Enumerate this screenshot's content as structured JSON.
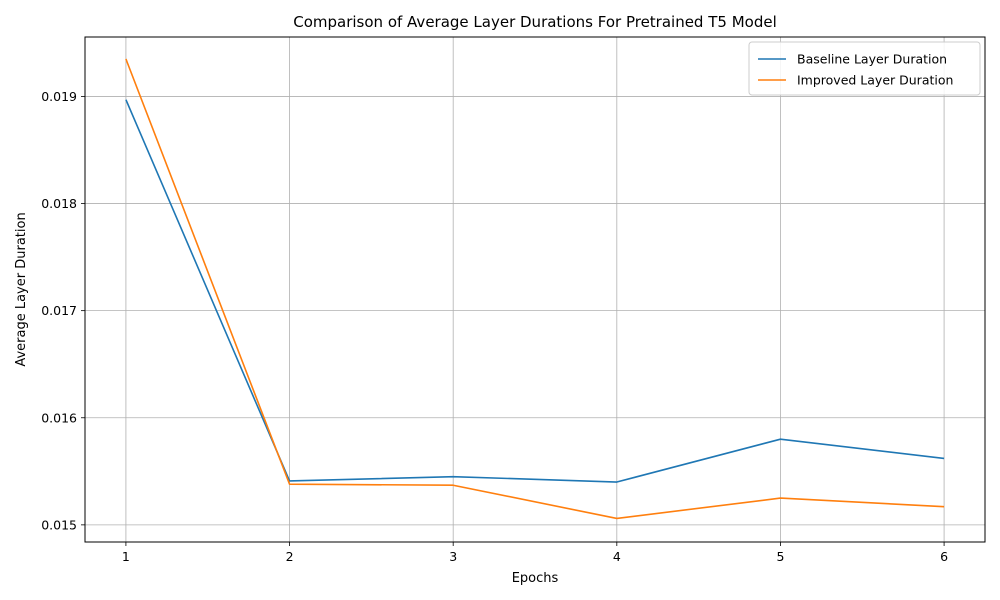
{
  "chart_data": {
    "type": "line",
    "title": "Comparison of Average Layer Durations For Pretrained T5 Model",
    "xlabel": "Epochs",
    "ylabel": "Average Layer Duration",
    "x": [
      1,
      2,
      3,
      4,
      5,
      6
    ],
    "series": [
      {
        "name": "Baseline Layer Duration",
        "color": "#1f77b4",
        "values": [
          0.01897,
          0.01541,
          0.01545,
          0.0154,
          0.0158,
          0.01562
        ]
      },
      {
        "name": "Improved Layer Duration",
        "color": "#ff7f0e",
        "values": [
          0.01935,
          0.01538,
          0.01537,
          0.01506,
          0.01525,
          0.01517
        ]
      }
    ],
    "xticks": [
      "1",
      "2",
      "3",
      "4",
      "5",
      "6"
    ],
    "yticks": [
      "0.015",
      "0.016",
      "0.017",
      "0.018",
      "0.019"
    ],
    "xlim": [
      0.75,
      6.25
    ],
    "ylim": [
      0.01484,
      0.019555
    ],
    "grid": true,
    "legend_position": "top-right"
  }
}
